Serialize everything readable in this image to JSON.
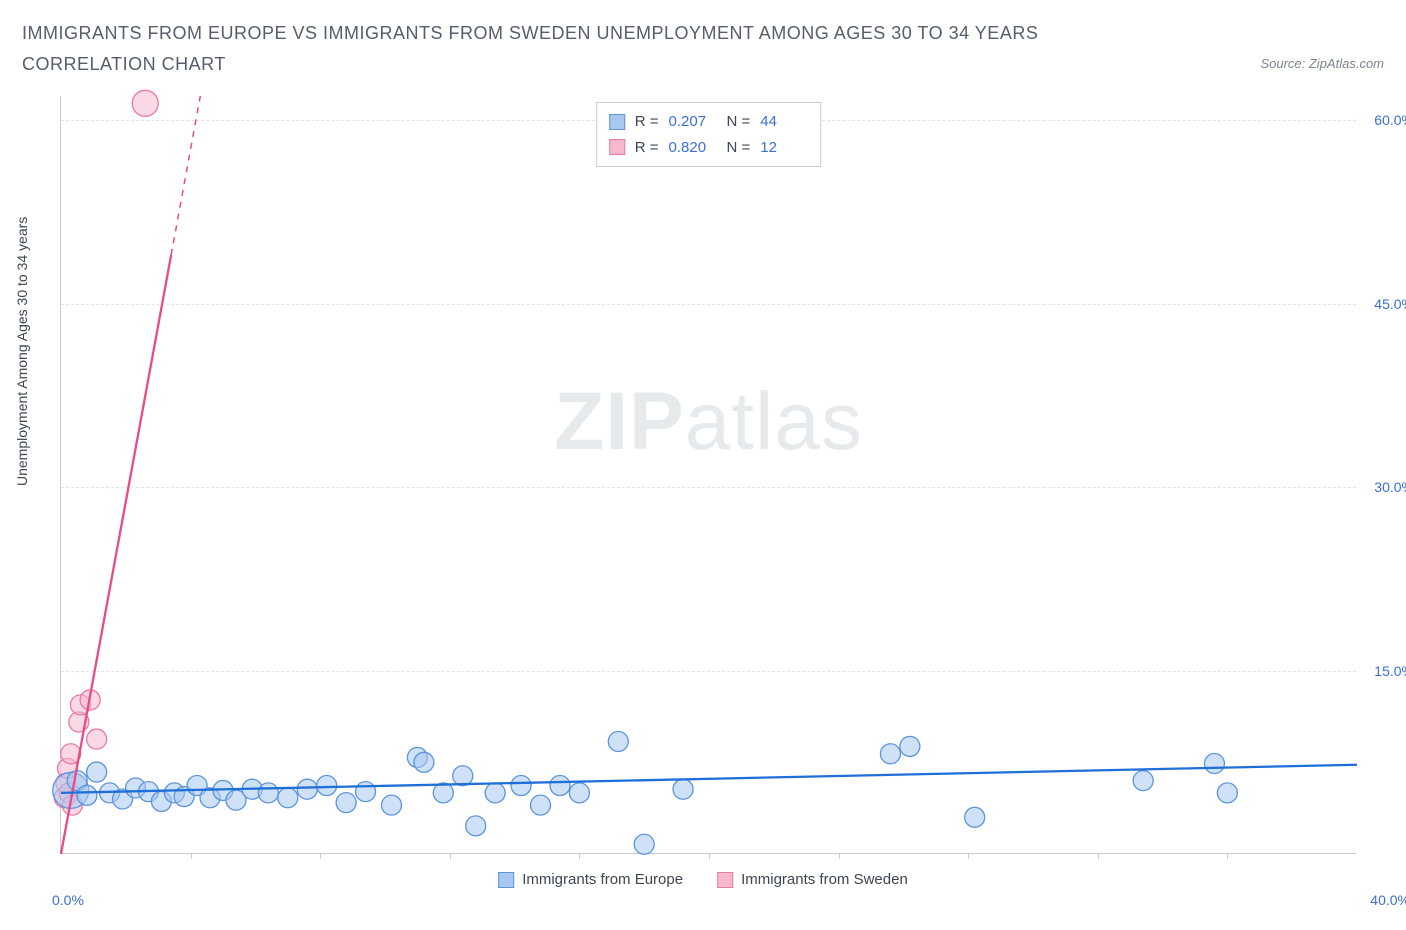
{
  "title": "IMMIGRANTS FROM EUROPE VS IMMIGRANTS FROM SWEDEN UNEMPLOYMENT AMONG AGES 30 TO 34 YEARS CORRELATION CHART",
  "source": "Source: ZipAtlas.com",
  "watermark_heavy": "ZIP",
  "watermark_light": "atlas",
  "y_axis_label": "Unemployment Among Ages 30 to 34 years",
  "chart": {
    "type": "scatter",
    "background_color": "#ffffff",
    "grid_color": "#e2e4e8",
    "axis_color": "#c9cdd3",
    "xlim": [
      0,
      40
    ],
    "ylim": [
      0,
      62
    ],
    "x_min_label": "0.0%",
    "x_max_label": "40.0%",
    "x_tick_marks": [
      4,
      8,
      12,
      16,
      20,
      24,
      28,
      32,
      36
    ],
    "y_ticks": [
      {
        "v": 15,
        "label": "15.0%"
      },
      {
        "v": 30,
        "label": "30.0%"
      },
      {
        "v": 45,
        "label": "45.0%"
      },
      {
        "v": 60,
        "label": "60.0%"
      }
    ],
    "series": {
      "europe": {
        "label": "Immigrants from Europe",
        "r_value": "0.207",
        "n_value": "44",
        "fill_color": "#a8c8f0",
        "stroke_color": "#5c94dc",
        "line_color": "#1f6fd8",
        "point_radius": 10,
        "fill_opacity": 0.55,
        "trend": {
          "x1": 0,
          "y1": 5.0,
          "x2": 40,
          "y2": 7.3,
          "width": 2.3
        },
        "points": [
          {
            "x": 0.3,
            "y": 5.2,
            "r": 18
          },
          {
            "x": 0.5,
            "y": 6.0
          },
          {
            "x": 0.8,
            "y": 4.8
          },
          {
            "x": 1.1,
            "y": 6.7
          },
          {
            "x": 1.5,
            "y": 5.0
          },
          {
            "x": 1.9,
            "y": 4.5
          },
          {
            "x": 2.3,
            "y": 5.4
          },
          {
            "x": 2.7,
            "y": 5.1
          },
          {
            "x": 3.1,
            "y": 4.3
          },
          {
            "x": 3.5,
            "y": 5.0
          },
          {
            "x": 3.8,
            "y": 4.7
          },
          {
            "x": 4.2,
            "y": 5.6
          },
          {
            "x": 4.6,
            "y": 4.6
          },
          {
            "x": 5.0,
            "y": 5.2
          },
          {
            "x": 5.4,
            "y": 4.4
          },
          {
            "x": 5.9,
            "y": 5.3
          },
          {
            "x": 6.4,
            "y": 5.0
          },
          {
            "x": 7.0,
            "y": 4.6
          },
          {
            "x": 7.6,
            "y": 5.3
          },
          {
            "x": 8.2,
            "y": 5.6
          },
          {
            "x": 8.8,
            "y": 4.2
          },
          {
            "x": 9.4,
            "y": 5.1
          },
          {
            "x": 10.2,
            "y": 4.0
          },
          {
            "x": 11.0,
            "y": 7.9
          },
          {
            "x": 11.2,
            "y": 7.5
          },
          {
            "x": 11.8,
            "y": 5.0
          },
          {
            "x": 12.4,
            "y": 6.4
          },
          {
            "x": 12.8,
            "y": 2.3
          },
          {
            "x": 13.4,
            "y": 5.0
          },
          {
            "x": 14.2,
            "y": 5.6
          },
          {
            "x": 14.8,
            "y": 4.0
          },
          {
            "x": 15.4,
            "y": 5.6
          },
          {
            "x": 16.0,
            "y": 5.0
          },
          {
            "x": 17.2,
            "y": 9.2
          },
          {
            "x": 18.0,
            "y": 0.8
          },
          {
            "x": 19.2,
            "y": 5.3
          },
          {
            "x": 25.6,
            "y": 8.2
          },
          {
            "x": 26.2,
            "y": 8.8
          },
          {
            "x": 28.2,
            "y": 3.0
          },
          {
            "x": 33.4,
            "y": 6.0
          },
          {
            "x": 35.6,
            "y": 7.4
          },
          {
            "x": 36.0,
            "y": 5.0
          }
        ]
      },
      "sweden": {
        "label": "Immigrants from Sweden",
        "r_value": "0.820",
        "n_value": "12",
        "fill_color": "#f6b8cd",
        "stroke_color": "#e979a6",
        "line_color": "#e84b8a",
        "point_radius": 10,
        "fill_opacity": 0.55,
        "trend_solid": {
          "x1": 0,
          "y1": 0,
          "x2": 3.4,
          "y2": 49,
          "width": 2.3
        },
        "trend_dash": {
          "x1": 3.4,
          "y1": 49,
          "x2": 4.3,
          "y2": 62,
          "width": 1.5,
          "dash": "6,6"
        },
        "points": [
          {
            "x": 0.1,
            "y": 4.6
          },
          {
            "x": 0.15,
            "y": 5.8
          },
          {
            "x": 0.2,
            "y": 7.0
          },
          {
            "x": 0.25,
            "y": 5.0
          },
          {
            "x": 0.3,
            "y": 8.2
          },
          {
            "x": 0.35,
            "y": 4.0
          },
          {
            "x": 0.55,
            "y": 10.8
          },
          {
            "x": 0.6,
            "y": 12.2
          },
          {
            "x": 0.9,
            "y": 12.6
          },
          {
            "x": 1.1,
            "y": 9.4
          },
          {
            "x": 2.6,
            "y": 61.4,
            "r": 13
          }
        ]
      }
    }
  },
  "legend_top": {
    "r_label": "R =",
    "n_label": "N ="
  }
}
